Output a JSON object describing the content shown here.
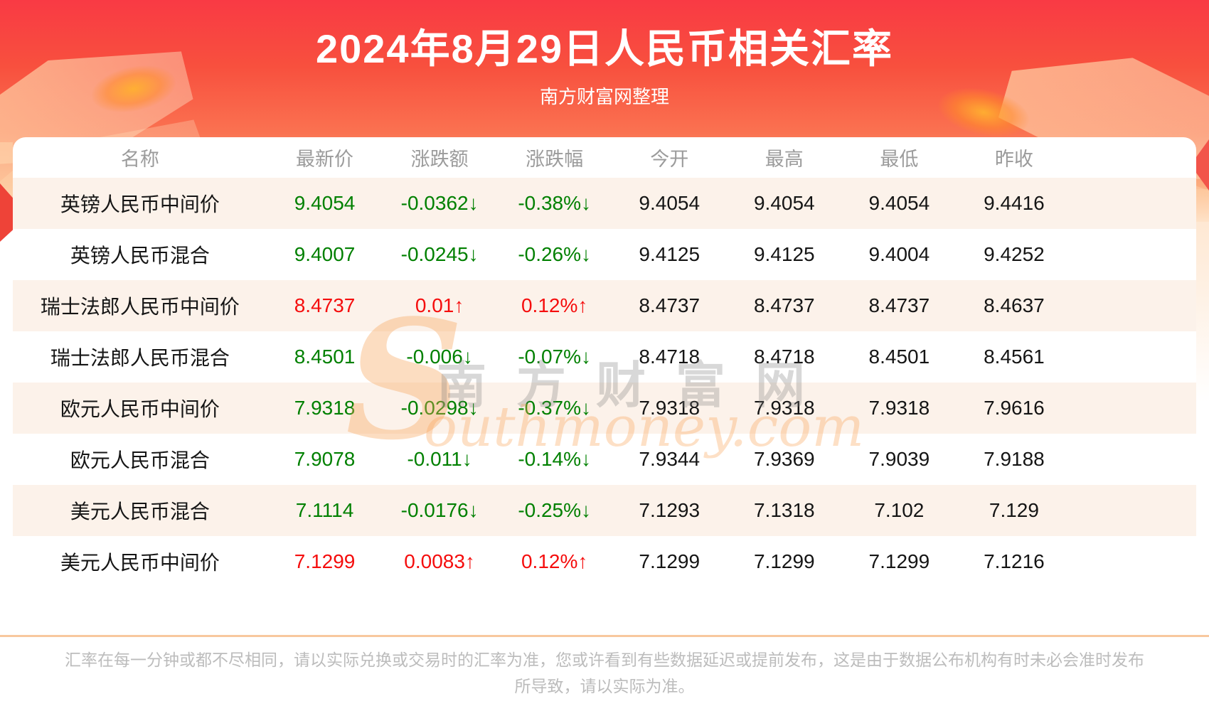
{
  "header": {
    "title": "2024年8月29日人民币相关汇率",
    "subtitle": "南方财富网整理"
  },
  "chart_data": {
    "type": "table",
    "title": "2024年8月29日人民币相关汇率",
    "columns": [
      "名称",
      "最新价",
      "涨跌额",
      "涨跌幅",
      "今开",
      "最高",
      "最低",
      "昨收"
    ],
    "column_keys": [
      "name",
      "latest",
      "change",
      "change_pct",
      "open",
      "high",
      "low",
      "prev_close"
    ],
    "rows": [
      {
        "name": "英镑人民币中间价",
        "latest": "9.4054",
        "change": "-0.0362↓",
        "change_pct": "-0.38%↓",
        "open": "9.4054",
        "high": "9.4054",
        "low": "9.4054",
        "prev_close": "9.4416",
        "trend": "down"
      },
      {
        "name": "英镑人民币混合",
        "latest": "9.4007",
        "change": "-0.0245↓",
        "change_pct": "-0.26%↓",
        "open": "9.4125",
        "high": "9.4125",
        "low": "9.4004",
        "prev_close": "9.4252",
        "trend": "down"
      },
      {
        "name": "瑞士法郎人民币中间价",
        "latest": "8.4737",
        "change": "0.01↑",
        "change_pct": "0.12%↑",
        "open": "8.4737",
        "high": "8.4737",
        "low": "8.4737",
        "prev_close": "8.4637",
        "trend": "up"
      },
      {
        "name": "瑞士法郎人民币混合",
        "latest": "8.4501",
        "change": "-0.006↓",
        "change_pct": "-0.07%↓",
        "open": "8.4718",
        "high": "8.4718",
        "low": "8.4501",
        "prev_close": "8.4561",
        "trend": "down"
      },
      {
        "name": "欧元人民币中间价",
        "latest": "7.9318",
        "change": "-0.0298↓",
        "change_pct": "-0.37%↓",
        "open": "7.9318",
        "high": "7.9318",
        "low": "7.9318",
        "prev_close": "7.9616",
        "trend": "down"
      },
      {
        "name": "欧元人民币混合",
        "latest": "7.9078",
        "change": "-0.011↓",
        "change_pct": "-0.14%↓",
        "open": "7.9344",
        "high": "7.9369",
        "low": "7.9039",
        "prev_close": "7.9188",
        "trend": "down"
      },
      {
        "name": "美元人民币混合",
        "latest": "7.1114",
        "change": "-0.0176↓",
        "change_pct": "-0.25%↓",
        "open": "7.1293",
        "high": "7.1318",
        "low": "7.102",
        "prev_close": "7.129",
        "trend": "down"
      },
      {
        "name": "美元人民币中间价",
        "latest": "7.1299",
        "change": "0.0083↑",
        "change_pct": "0.12%↑",
        "open": "7.1299",
        "high": "7.1299",
        "low": "7.1299",
        "prev_close": "7.1216",
        "trend": "up"
      }
    ]
  },
  "watermark": {
    "cn": "南方财富网",
    "en_initial": "S",
    "en_rest": "outhmoney.com"
  },
  "footer": {
    "disclaimer": "汇率在每一分钟或都不尽相同，请以实际兑换或交易时的汇率为准，您或许看到有些数据延迟或提前发布，这是由于数据公布机构有时未必会准时发布所导致，请以实际为准。"
  },
  "colors": {
    "up_red": "#f50d0d",
    "down_green": "#008000",
    "row_alt": "#fcf2ea",
    "divider": "#f8c89e",
    "header_red_top": "#f93a44",
    "header_red_bottom": "#fcae80"
  }
}
